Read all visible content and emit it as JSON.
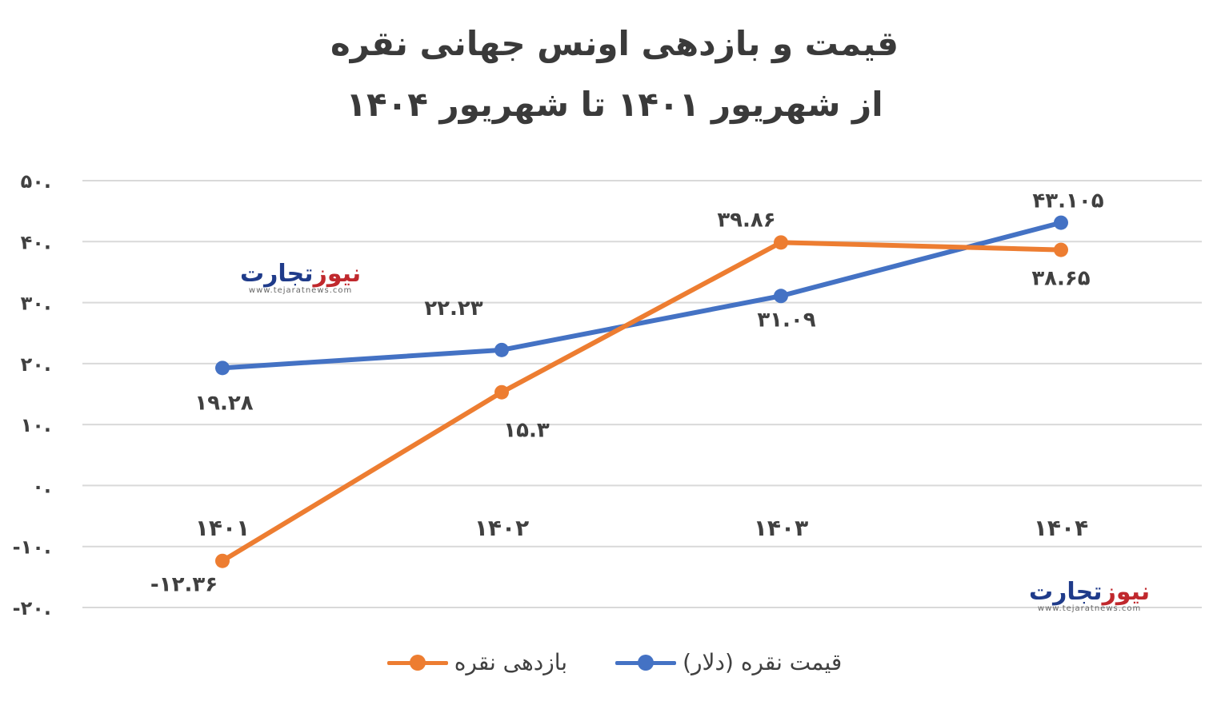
{
  "title": "قیمت و بازدهی اونس جهانی نقره",
  "subtitle": "از شهریور ۱۴۰۱ تا شهریور ۱۴۰۴",
  "logo": {
    "part1": "تجارت",
    "part2": "نیوز",
    "url": "www.tejaratnews.com"
  },
  "colors": {
    "price": "#4472c4",
    "return": "#ed7d31",
    "grid": "#d9d9d9"
  },
  "chart_data": {
    "type": "line",
    "title": "قیمت و بازدهی اونس جهانی نقره",
    "subtitle": "از شهریور ۱۴۰۱ تا شهریور ۱۴۰۴",
    "categories": [
      "۱۴۰۱",
      "۱۴۰۲",
      "۱۴۰۳",
      "۱۴۰۴"
    ],
    "ylim": [
      -20,
      50
    ],
    "yticks": [
      50,
      40,
      30,
      20,
      10,
      0,
      -10,
      -20
    ],
    "ytick_labels": [
      "۵۰.",
      "۴۰.",
      "۳۰.",
      "۲۰.",
      "۱۰.",
      "۰.",
      "-۱۰.",
      "-۲۰."
    ],
    "grid": true,
    "legend_position": "bottom",
    "series": [
      {
        "name": "قیمت نقره (دلار)",
        "values": [
          19.28,
          22.23,
          31.09,
          43.105
        ],
        "labels": [
          "۱۹.۲۸",
          "۲۲.۲۳",
          "۳۱.۰۹",
          "۴۳.۱۰۵"
        ]
      },
      {
        "name": "بازدهی نقره",
        "values": [
          -12.36,
          15.3,
          39.86,
          38.65
        ],
        "labels": [
          "-۱۲.۳۶",
          "۱۵.۳",
          "۳۹.۸۶",
          "۳۸.۶۵"
        ]
      }
    ]
  }
}
